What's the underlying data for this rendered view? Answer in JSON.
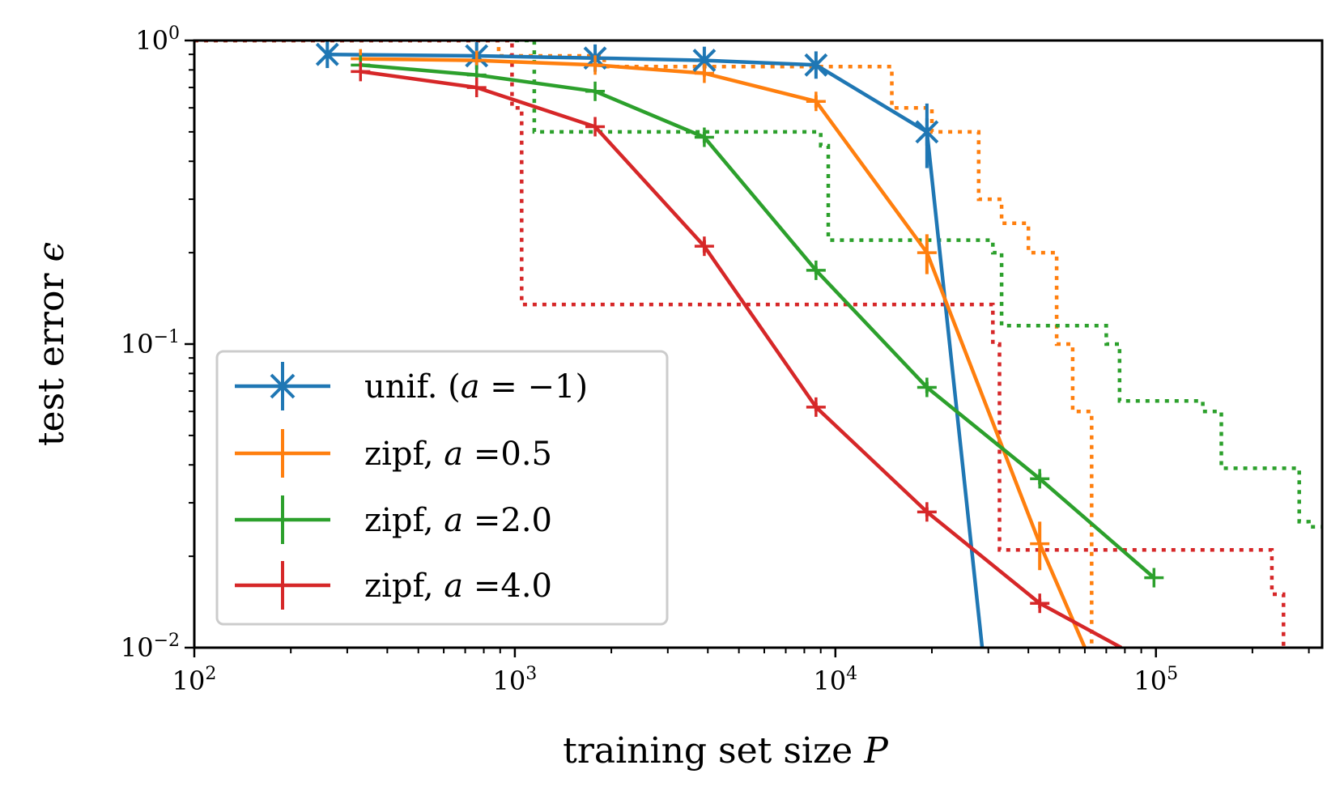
{
  "chart_data": {
    "type": "line",
    "title": "",
    "xlabel": "training set size",
    "xlabel_symbol": "P",
    "ylabel": "test error",
    "ylabel_symbol": "ϵ",
    "xscale": "log",
    "yscale": "log",
    "xlim": [
      100,
      330000
    ],
    "ylim": [
      0.01,
      1
    ],
    "x_ticks": [
      {
        "value": 100,
        "base": "10",
        "exp": "2"
      },
      {
        "value": 1000,
        "base": "10",
        "exp": "3"
      },
      {
        "value": 10000,
        "base": "10",
        "exp": "4"
      },
      {
        "value": 100000,
        "base": "10",
        "exp": "5"
      }
    ],
    "y_ticks": [
      {
        "value": 0.01,
        "base": "10",
        "exp": "−2"
      },
      {
        "value": 0.1,
        "base": "10",
        "exp": "−1"
      },
      {
        "value": 1,
        "base": "10",
        "exp": "0"
      }
    ],
    "legend_position": "lower-left",
    "series": [
      {
        "name": "unif. (a = −1)",
        "legend": {
          "prefix": "unif. (",
          "var": "a",
          "suffix": " = −1)"
        },
        "color": "#1f77b4",
        "marker": "x-star",
        "x": [
          260,
          760,
          1780,
          3900,
          8700,
          19300,
          28700
        ],
        "y": [
          0.9,
          0.89,
          0.875,
          0.86,
          0.83,
          0.5,
          0.01
        ],
        "yerr": [
          0,
          0,
          0,
          0,
          0,
          0.12,
          0
        ]
      },
      {
        "name": "zipf, a =0.5",
        "legend": {
          "prefix": "zipf, ",
          "var": "a",
          "suffix": " =0.5"
        },
        "color": "#ff7f0e",
        "marker": "plus",
        "x": [
          330,
          760,
          1780,
          3900,
          8700,
          19300,
          43400,
          60000
        ],
        "y": [
          0.87,
          0.86,
          0.83,
          0.78,
          0.63,
          0.2,
          0.022,
          0.01
        ],
        "yerr": [
          0,
          0,
          0,
          0.02,
          0.03,
          0.03,
          0.004,
          0
        ]
      },
      {
        "name": "zipf, a =2.0",
        "legend": {
          "prefix": "zipf, ",
          "var": "a",
          "suffix": " =2.0"
        },
        "color": "#2ca02c",
        "marker": "plus",
        "x": [
          330,
          760,
          1780,
          3900,
          8700,
          19300,
          43400,
          98600
        ],
        "y": [
          0.83,
          0.77,
          0.68,
          0.48,
          0.175,
          0.072,
          0.036,
          0.017
        ],
        "yerr": [
          0,
          0,
          0,
          0.02,
          0.005,
          0.003,
          0.0015,
          0
        ]
      },
      {
        "name": "zipf, a =4.0",
        "legend": {
          "prefix": "zipf, ",
          "var": "a",
          "suffix": " =4.0"
        },
        "color": "#d62728",
        "marker": "plus",
        "x": [
          330,
          760,
          1780,
          3900,
          8700,
          19300,
          43400,
          78000
        ],
        "y": [
          0.79,
          0.7,
          0.52,
          0.21,
          0.062,
          0.028,
          0.014,
          0.01
        ],
        "yerr": [
          0,
          0,
          0,
          0.01,
          0.002,
          0.001,
          0.0005,
          0
        ]
      }
    ],
    "theory_steps": [
      {
        "series": "zipf, a =0.5",
        "color": "#ff7f0e",
        "x": [
          100,
          890,
          890,
          1900,
          1900,
          15000,
          15000,
          20000,
          20000,
          28000,
          28000,
          33000,
          33000,
          40000,
          40000,
          49000,
          49000,
          55000,
          55000,
          63000,
          63000
        ],
        "y": [
          1,
          1,
          0.89,
          0.89,
          0.82,
          0.82,
          0.6,
          0.6,
          0.5,
          0.5,
          0.3,
          0.3,
          0.25,
          0.25,
          0.2,
          0.2,
          0.1,
          0.1,
          0.06,
          0.06,
          0.01
        ]
      },
      {
        "series": "zipf, a =2.0",
        "color": "#2ca02c",
        "x": [
          100,
          1150,
          1150,
          9000,
          9000,
          9500,
          9500,
          31000,
          31000,
          33000,
          33000,
          70000,
          70000,
          77000,
          77000,
          140000,
          140000,
          160000,
          160000,
          280000,
          280000,
          300000,
          300000,
          330000
        ],
        "y": [
          1,
          1,
          0.5,
          0.5,
          0.45,
          0.45,
          0.22,
          0.22,
          0.2,
          0.2,
          0.115,
          0.115,
          0.1,
          0.1,
          0.065,
          0.065,
          0.06,
          0.06,
          0.039,
          0.039,
          0.026,
          0.026,
          0.025,
          0.025
        ]
      },
      {
        "series": "zipf, a =4.0",
        "color": "#d62728",
        "x": [
          100,
          980,
          980,
          1050,
          1050,
          31000,
          31000,
          32500,
          32500,
          230000,
          230000,
          250000,
          250000
        ],
        "y": [
          1,
          1,
          0.6,
          0.6,
          0.135,
          0.135,
          0.1,
          0.1,
          0.021,
          0.021,
          0.015,
          0.015,
          0.01
        ]
      }
    ]
  }
}
